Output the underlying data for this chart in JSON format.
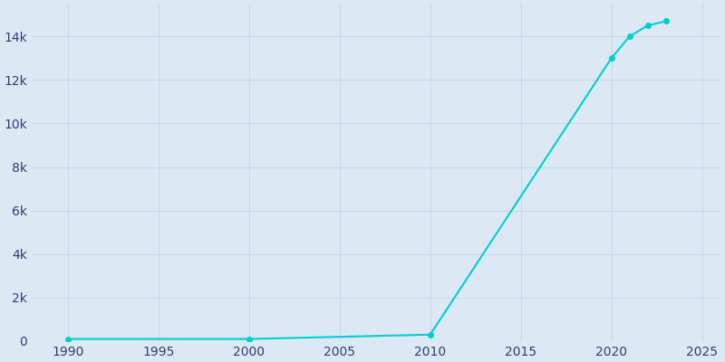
{
  "years": [
    1990,
    2000,
    2010,
    2020,
    2021,
    2022,
    2023
  ],
  "population": [
    100,
    100,
    300,
    13000,
    14000,
    14500,
    14700
  ],
  "line_color": "#00CED1",
  "marker_color": "#00CED1",
  "bg_color": "#dce9f5",
  "plot_bg_color": "#dce9f5",
  "grid_color": "#c5d8ea",
  "tick_color": "#2d3f6e",
  "xlim": [
    1988,
    2026
  ],
  "ylim": [
    0,
    15500
  ],
  "xticks": [
    1990,
    1995,
    2000,
    2005,
    2010,
    2015,
    2020,
    2025
  ],
  "ytick_values": [
    0,
    2000,
    4000,
    6000,
    8000,
    10000,
    12000,
    14000
  ]
}
